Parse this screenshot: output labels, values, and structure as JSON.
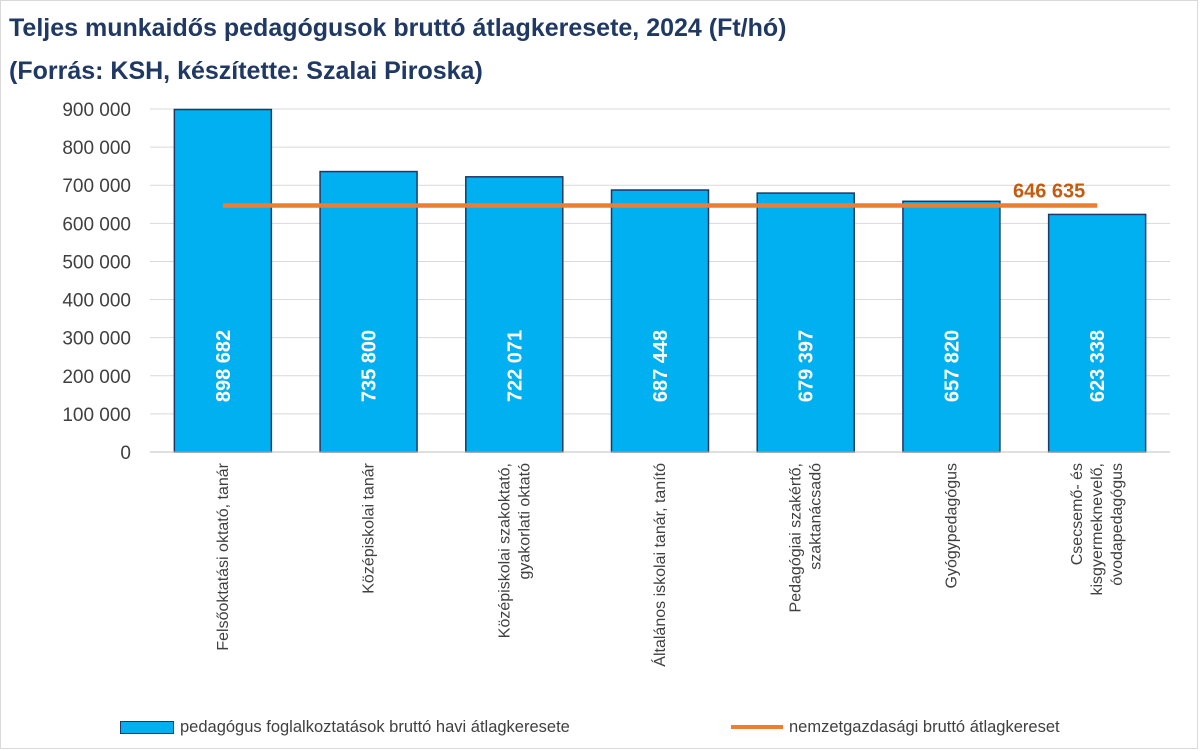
{
  "colors": {
    "bar_fill": "#00b0f0",
    "bar_stroke": "#1f3864",
    "avg_line": "#ed7d31",
    "avg_label": "#c55a11",
    "title": "#1f3864",
    "grid": "#d9d9d9"
  },
  "chart_data": {
    "type": "bar",
    "title": "Teljes munkaidős pedagógusok bruttó átlagkeresete, 2024 (Ft/hó)",
    "subtitle": "(Forrás: KSH, készítette: Szalai Piroska)",
    "categories": [
      [
        "Felsőoktatási oktató, tanár"
      ],
      [
        "Középiskolai tanár"
      ],
      [
        "Középiskolai szakoktató,",
        "gyakorlati oktató"
      ],
      [
        "Általános iskolai tanár, tanító"
      ],
      [
        "Pedagógiai szakértő,",
        "szaktanácsadó"
      ],
      [
        "Gyógypedagógus"
      ],
      [
        "Csecsemő- és",
        "kisgyermeknevelő,",
        "óvodapedagógus"
      ]
    ],
    "series": [
      {
        "name": "pedagógus foglalkoztatások bruttó havi átlagkeresete",
        "values": [
          898682,
          735800,
          722071,
          687448,
          679397,
          657820,
          623338
        ],
        "labels": [
          "898 682",
          "735 800",
          "722 071",
          "687 448",
          "679 397",
          "657 820",
          "623 338"
        ]
      }
    ],
    "reference_line": {
      "name": "nemzetgazdasági bruttó átlagkereset",
      "value": 646635,
      "label": "646 635"
    },
    "ylim": [
      0,
      900000
    ],
    "yticks": [
      0,
      100000,
      200000,
      300000,
      400000,
      500000,
      600000,
      700000,
      800000,
      900000
    ],
    "ytick_labels": [
      "0",
      "100 000",
      "200 000",
      "300 000",
      "400 000",
      "500 000",
      "600 000",
      "700 000",
      "800 000",
      "900 000"
    ],
    "grid": true,
    "legend_position": "bottom"
  }
}
